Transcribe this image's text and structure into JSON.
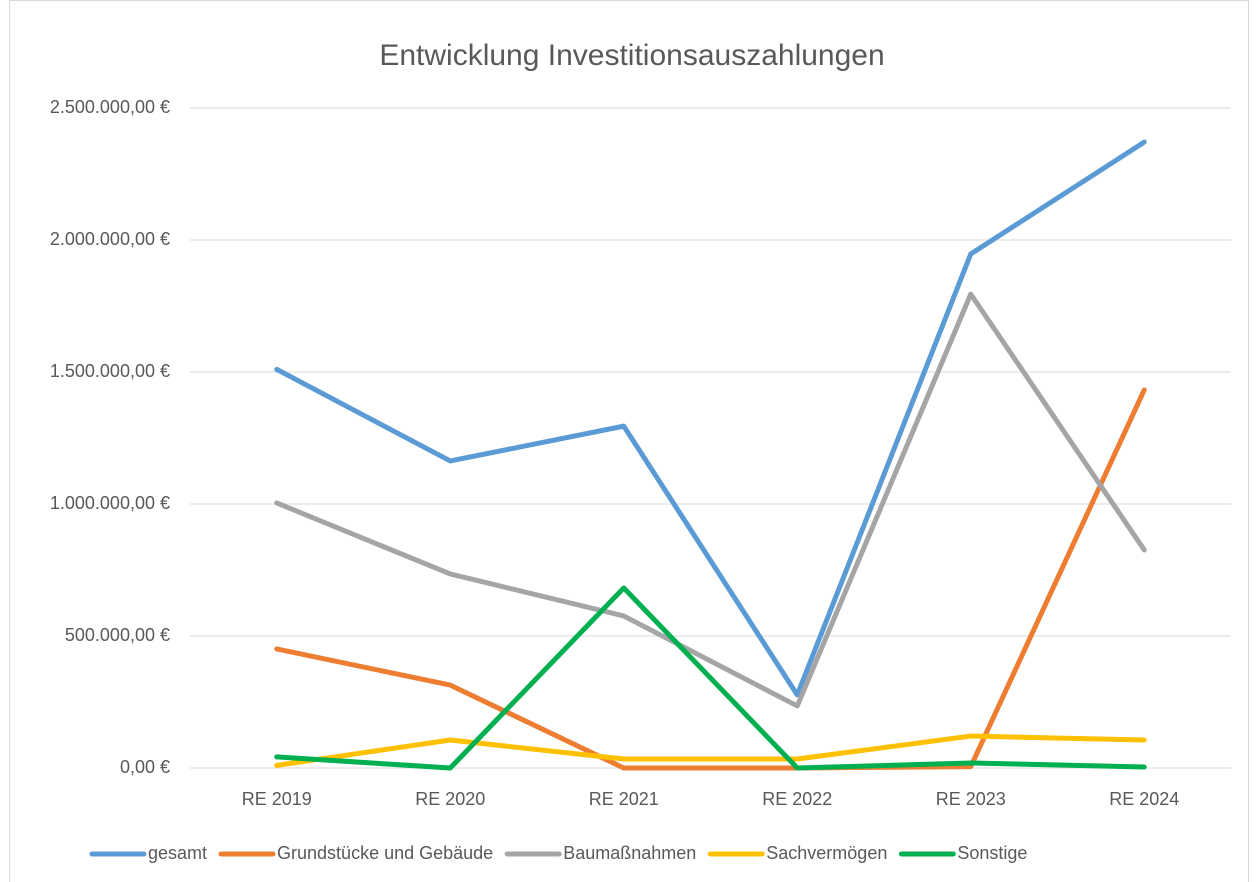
{
  "chart_data": {
    "type": "line",
    "title": "Entwicklung Investitionsauszahlungen",
    "categories": [
      "RE 2019",
      "RE 2020",
      "RE 2021",
      "RE 2022",
      "RE 2023",
      "RE 2024"
    ],
    "series": [
      {
        "name": "gesamt",
        "color": "#5b9bd5",
        "values": [
          1510000,
          1163000,
          1295000,
          277000,
          1947000,
          2371000
        ]
      },
      {
        "name": "Grundstücke und Gebäude",
        "color": "#ed7d31",
        "values": [
          451000,
          314000,
          0,
          0,
          5000,
          1432000
        ]
      },
      {
        "name": "Baumaßnahmen",
        "color": "#a5a5a5",
        "values": [
          1004000,
          735000,
          576000,
          235000,
          1795000,
          826000
        ]
      },
      {
        "name": "Sachvermögen",
        "color": "#ffc000",
        "values": [
          10000,
          106000,
          34000,
          34000,
          121000,
          106000
        ]
      },
      {
        "name": "Sonstige",
        "color": "#00b050",
        "values": [
          42000,
          0,
          682000,
          0,
          19000,
          4000
        ]
      }
    ],
    "ylim": [
      0,
      2500000
    ],
    "yticks": [
      {
        "value": 0,
        "label": "0,00 €"
      },
      {
        "value": 500000,
        "label": "500.000,00 €"
      },
      {
        "value": 1000000,
        "label": "1.000.000,00 €"
      },
      {
        "value": 1500000,
        "label": "1.500.000,00 €"
      },
      {
        "value": 2000000,
        "label": "2.000.000,00 €"
      },
      {
        "value": 2500000,
        "label": "2.500.000,00 €"
      }
    ],
    "grid": true,
    "legend": "bottom"
  }
}
